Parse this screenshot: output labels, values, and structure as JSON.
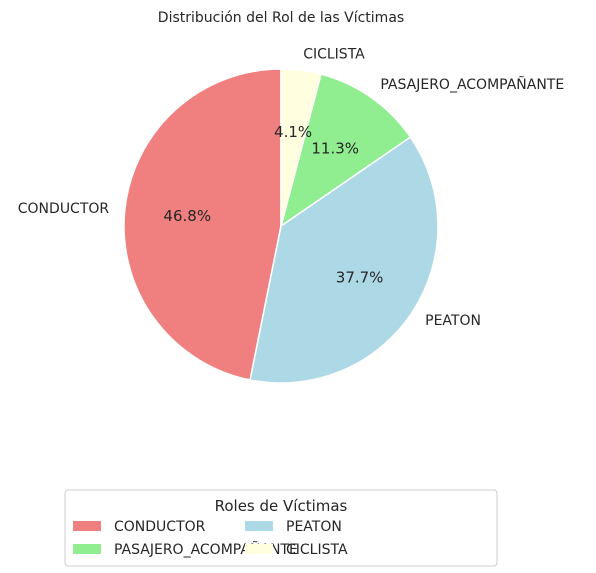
{
  "chart_data": {
    "type": "pie",
    "title": "Distribución del Rol de las Víctimas",
    "categories": [
      "CONDUCTOR",
      "PEATON",
      "PASAJERO_ACOMPAÑANTE",
      "CICLISTA"
    ],
    "values": [
      46.8,
      37.7,
      11.3,
      4.1
    ],
    "value_labels": [
      "46.8%",
      "37.7%",
      "11.3%",
      "4.1%"
    ],
    "colors": [
      "#f08080",
      "#add8e6",
      "#90ee90",
      "#ffffe0"
    ],
    "start_angle_deg": 90,
    "direction": "counterclockwise",
    "legend": {
      "title": "Roles de Víctimas",
      "placement": "bottom-center",
      "columns": 2,
      "entries": [
        "CONDUCTOR",
        "PEATON",
        "PASAJERO_ACOMPAÑANTE",
        "CICLISTA"
      ]
    }
  }
}
